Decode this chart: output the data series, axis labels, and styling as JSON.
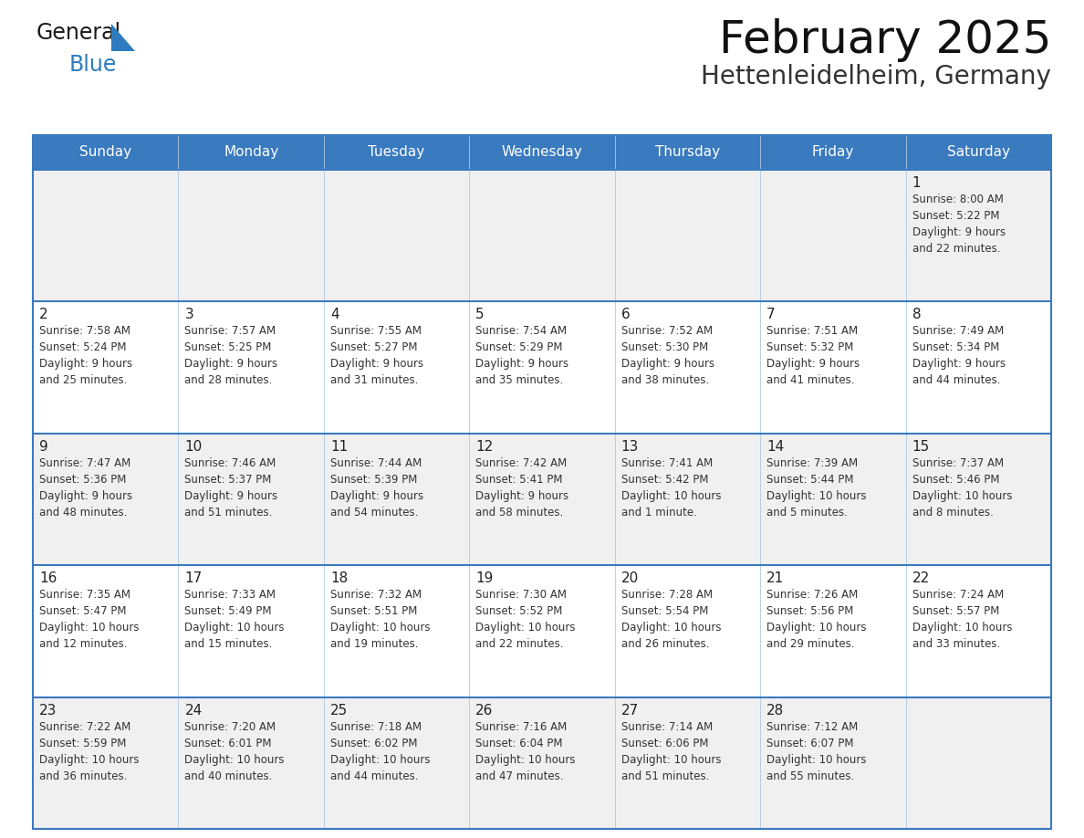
{
  "title": "February 2025",
  "subtitle": "Hettenleidelheim, Germany",
  "header_bg": "#3a7abf",
  "header_text": "#ffffff",
  "cell_bg_light": "#f0f0f0",
  "cell_bg_white": "#ffffff",
  "border_color": "#3a7abf",
  "sep_color": "#3a7abf",
  "text_color": "#222222",
  "day_headers": [
    "Sunday",
    "Monday",
    "Tuesday",
    "Wednesday",
    "Thursday",
    "Friday",
    "Saturday"
  ],
  "weeks": [
    [
      {
        "day": "",
        "info": ""
      },
      {
        "day": "",
        "info": ""
      },
      {
        "day": "",
        "info": ""
      },
      {
        "day": "",
        "info": ""
      },
      {
        "day": "",
        "info": ""
      },
      {
        "day": "",
        "info": ""
      },
      {
        "day": "1",
        "info": "Sunrise: 8:00 AM\nSunset: 5:22 PM\nDaylight: 9 hours\nand 22 minutes."
      }
    ],
    [
      {
        "day": "2",
        "info": "Sunrise: 7:58 AM\nSunset: 5:24 PM\nDaylight: 9 hours\nand 25 minutes."
      },
      {
        "day": "3",
        "info": "Sunrise: 7:57 AM\nSunset: 5:25 PM\nDaylight: 9 hours\nand 28 minutes."
      },
      {
        "day": "4",
        "info": "Sunrise: 7:55 AM\nSunset: 5:27 PM\nDaylight: 9 hours\nand 31 minutes."
      },
      {
        "day": "5",
        "info": "Sunrise: 7:54 AM\nSunset: 5:29 PM\nDaylight: 9 hours\nand 35 minutes."
      },
      {
        "day": "6",
        "info": "Sunrise: 7:52 AM\nSunset: 5:30 PM\nDaylight: 9 hours\nand 38 minutes."
      },
      {
        "day": "7",
        "info": "Sunrise: 7:51 AM\nSunset: 5:32 PM\nDaylight: 9 hours\nand 41 minutes."
      },
      {
        "day": "8",
        "info": "Sunrise: 7:49 AM\nSunset: 5:34 PM\nDaylight: 9 hours\nand 44 minutes."
      }
    ],
    [
      {
        "day": "9",
        "info": "Sunrise: 7:47 AM\nSunset: 5:36 PM\nDaylight: 9 hours\nand 48 minutes."
      },
      {
        "day": "10",
        "info": "Sunrise: 7:46 AM\nSunset: 5:37 PM\nDaylight: 9 hours\nand 51 minutes."
      },
      {
        "day": "11",
        "info": "Sunrise: 7:44 AM\nSunset: 5:39 PM\nDaylight: 9 hours\nand 54 minutes."
      },
      {
        "day": "12",
        "info": "Sunrise: 7:42 AM\nSunset: 5:41 PM\nDaylight: 9 hours\nand 58 minutes."
      },
      {
        "day": "13",
        "info": "Sunrise: 7:41 AM\nSunset: 5:42 PM\nDaylight: 10 hours\nand 1 minute."
      },
      {
        "day": "14",
        "info": "Sunrise: 7:39 AM\nSunset: 5:44 PM\nDaylight: 10 hours\nand 5 minutes."
      },
      {
        "day": "15",
        "info": "Sunrise: 7:37 AM\nSunset: 5:46 PM\nDaylight: 10 hours\nand 8 minutes."
      }
    ],
    [
      {
        "day": "16",
        "info": "Sunrise: 7:35 AM\nSunset: 5:47 PM\nDaylight: 10 hours\nand 12 minutes."
      },
      {
        "day": "17",
        "info": "Sunrise: 7:33 AM\nSunset: 5:49 PM\nDaylight: 10 hours\nand 15 minutes."
      },
      {
        "day": "18",
        "info": "Sunrise: 7:32 AM\nSunset: 5:51 PM\nDaylight: 10 hours\nand 19 minutes."
      },
      {
        "day": "19",
        "info": "Sunrise: 7:30 AM\nSunset: 5:52 PM\nDaylight: 10 hours\nand 22 minutes."
      },
      {
        "day": "20",
        "info": "Sunrise: 7:28 AM\nSunset: 5:54 PM\nDaylight: 10 hours\nand 26 minutes."
      },
      {
        "day": "21",
        "info": "Sunrise: 7:26 AM\nSunset: 5:56 PM\nDaylight: 10 hours\nand 29 minutes."
      },
      {
        "day": "22",
        "info": "Sunrise: 7:24 AM\nSunset: 5:57 PM\nDaylight: 10 hours\nand 33 minutes."
      }
    ],
    [
      {
        "day": "23",
        "info": "Sunrise: 7:22 AM\nSunset: 5:59 PM\nDaylight: 10 hours\nand 36 minutes."
      },
      {
        "day": "24",
        "info": "Sunrise: 7:20 AM\nSunset: 6:01 PM\nDaylight: 10 hours\nand 40 minutes."
      },
      {
        "day": "25",
        "info": "Sunrise: 7:18 AM\nSunset: 6:02 PM\nDaylight: 10 hours\nand 44 minutes."
      },
      {
        "day": "26",
        "info": "Sunrise: 7:16 AM\nSunset: 6:04 PM\nDaylight: 10 hours\nand 47 minutes."
      },
      {
        "day": "27",
        "info": "Sunrise: 7:14 AM\nSunset: 6:06 PM\nDaylight: 10 hours\nand 51 minutes."
      },
      {
        "day": "28",
        "info": "Sunrise: 7:12 AM\nSunset: 6:07 PM\nDaylight: 10 hours\nand 55 minutes."
      },
      {
        "day": "",
        "info": ""
      }
    ]
  ],
  "logo_general_color": "#1a1a1a",
  "logo_blue_color": "#2e7bbf",
  "fig_bg": "#ffffff",
  "title_fontsize": 36,
  "subtitle_fontsize": 20,
  "header_fontsize": 11,
  "day_num_fontsize": 11,
  "info_fontsize": 8.5
}
